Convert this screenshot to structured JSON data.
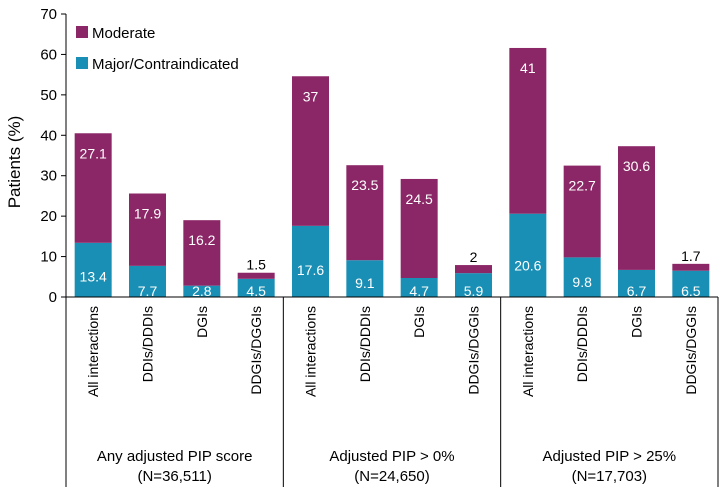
{
  "chart_data": {
    "type": "bar",
    "stacked": true,
    "title": "",
    "xlabel": "",
    "ylabel": "Patients (%)",
    "ylim": [
      0,
      70
    ],
    "yticks": [
      0,
      10,
      20,
      30,
      40,
      50,
      60,
      70
    ],
    "legend_position": "top-left",
    "colors": {
      "major": "#1a8fb5",
      "moderate": "#8b2766"
    },
    "groups": [
      {
        "label": "Any adjusted PIP score",
        "sublabel": "(N=36,511)"
      },
      {
        "label": "Adjusted PIP > 0%",
        "sublabel": "(N=24,650)"
      },
      {
        "label": "Adjusted PIP > 25%",
        "sublabel": "(N=17,703)"
      }
    ],
    "categories": [
      "All interactions",
      "DDIs/DDDIs",
      "DGIs",
      "DDGIs/DGGIs"
    ],
    "series": [
      {
        "name": "Major/Contraindicated",
        "values": [
          [
            13.4,
            7.7,
            2.8,
            4.5
          ],
          [
            17.6,
            9.1,
            4.7,
            5.9
          ],
          [
            20.6,
            9.8,
            6.7,
            6.5
          ]
        ]
      },
      {
        "name": "Moderate",
        "values": [
          [
            27.1,
            17.9,
            16.2,
            1.5
          ],
          [
            37,
            23.5,
            24.5,
            2
          ],
          [
            41,
            22.7,
            30.6,
            1.7
          ]
        ]
      }
    ],
    "legend": [
      "Moderate",
      "Major/Contraindicated"
    ]
  }
}
